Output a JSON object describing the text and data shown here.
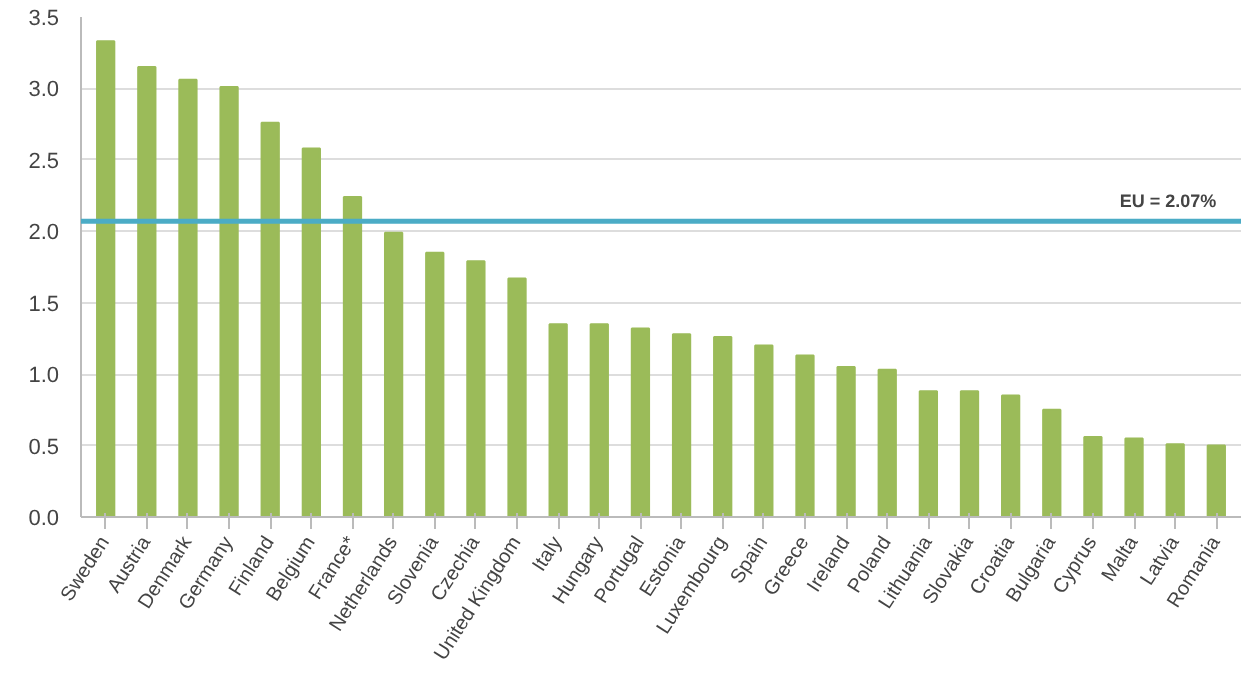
{
  "chart_data": {
    "type": "bar",
    "categories": [
      "Sweden",
      "Austria",
      "Denmark",
      "Germany",
      "Finland",
      "Belgium",
      "France*",
      "Netherlands",
      "Slovenia",
      "Czechia",
      "United Kingdom",
      "Italy",
      "Hungary",
      "Portugal",
      "Estonia",
      "Luxembourg",
      "Spain",
      "Greece",
      "Ireland",
      "Poland",
      "Lithuania",
      "Slovakia",
      "Croatia",
      "Bulgaria",
      "Cyprus",
      "Malta",
      "Latvia",
      "Romania"
    ],
    "values": [
      3.33,
      3.15,
      3.06,
      3.01,
      2.76,
      2.58,
      2.24,
      1.99,
      1.85,
      1.79,
      1.67,
      1.35,
      1.35,
      1.32,
      1.28,
      1.26,
      1.2,
      1.13,
      1.05,
      1.03,
      0.88,
      0.88,
      0.85,
      0.75,
      0.56,
      0.55,
      0.51,
      0.5
    ],
    "color": "#9bbb59",
    "ylim": [
      0,
      3.5
    ],
    "yticks": [
      {
        "value": 0,
        "label": "0.0"
      },
      {
        "value": 0.5,
        "label": "0.5"
      },
      {
        "value": 1,
        "label": "1.0"
      },
      {
        "value": 1.5,
        "label": "1.5"
      },
      {
        "value": 2,
        "label": "2.0"
      },
      {
        "value": 2.5,
        "label": "2.5"
      },
      {
        "value": 3,
        "label": "3.0"
      },
      {
        "value": 3.5,
        "label": "3.5"
      }
    ],
    "grid": "y",
    "ref_lines": [
      {
        "axis": "y",
        "value": 2.07,
        "label": "EU = 2.07%",
        "color": "#4bacc6"
      }
    ]
  }
}
